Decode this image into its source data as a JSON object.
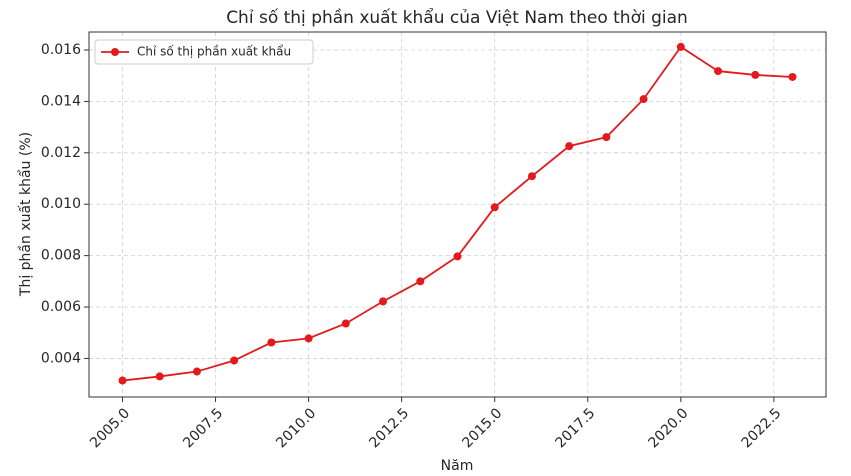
{
  "chart_data": {
    "type": "line",
    "title": "Chỉ số thị phần xuất khẩu của Việt Nam theo thời gian",
    "x_label": "Năm",
    "y_label": "Thị phần xuất khẩu (%)",
    "x": [
      2005,
      2006,
      2007,
      2008,
      2009,
      2010,
      2011,
      2012,
      2013,
      2014,
      2015,
      2016,
      2017,
      2018,
      2019,
      2020,
      2021,
      2022,
      2023
    ],
    "series": [
      {
        "name": "Chỉ số thị phần xuất khẩu",
        "color": "#e31a1c",
        "values": [
          0.00314,
          0.0033,
          0.00349,
          0.00392,
          0.00462,
          0.00478,
          0.00536,
          0.00622,
          0.007,
          0.00797,
          0.00988,
          0.01109,
          0.01226,
          0.01261,
          0.01409,
          0.01612,
          0.01518,
          0.01503,
          0.01495
        ]
      }
    ],
    "xlim": [
      2004.1,
      2023.9
    ],
    "xticks": [
      {
        "value": 2005,
        "label": "2005.0"
      },
      2007.5,
      {
        "value": 2010,
        "label": "2010.0"
      },
      2012.5,
      {
        "value": 2015,
        "label": "2015.0"
      },
      2017.5,
      {
        "value": 2020,
        "label": "2020.0"
      },
      2022.5
    ],
    "ylim": [
      0.0025,
      0.0167
    ],
    "yticks": [
      0.004,
      0.006,
      0.008,
      {
        "value": 0.01,
        "label": "0.010"
      },
      0.012,
      0.014,
      0.016
    ],
    "grid": true,
    "legend": "upper left"
  }
}
